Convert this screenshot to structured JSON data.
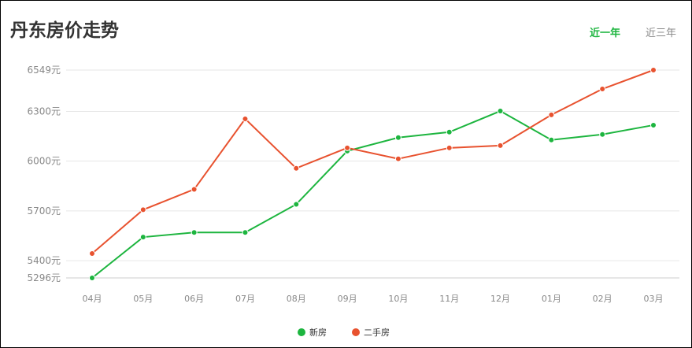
{
  "header": {
    "title": "丹东房价走势",
    "tabs": [
      {
        "label": "近一年",
        "active": true
      },
      {
        "label": "近三年",
        "active": false
      }
    ]
  },
  "chart_data": {
    "type": "line",
    "categories": [
      "04月",
      "05月",
      "06月",
      "07月",
      "08月",
      "09月",
      "10月",
      "11月",
      "12月",
      "01月",
      "02月",
      "03月"
    ],
    "yticks": [
      5296,
      5400,
      5700,
      6000,
      6300,
      6549
    ],
    "ytick_labels": [
      "5296元",
      "5400元",
      "5700元",
      "6000元",
      "6300元",
      "6549元"
    ],
    "ylim": [
      5296,
      6549
    ],
    "grid": true,
    "legend_placement": "bottom",
    "series": [
      {
        "name": "新房",
        "color": "#1db53f",
        "values": [
          5296,
          5542,
          5570,
          5570,
          5740,
          6061,
          6142,
          6175,
          6302,
          6128,
          6161,
          6217
        ]
      },
      {
        "name": "二手房",
        "color": "#e8522f",
        "values": [
          5443,
          5707,
          5830,
          6255,
          5957,
          6080,
          6014,
          6080,
          6094,
          6279,
          6435,
          6549
        ]
      }
    ]
  }
}
